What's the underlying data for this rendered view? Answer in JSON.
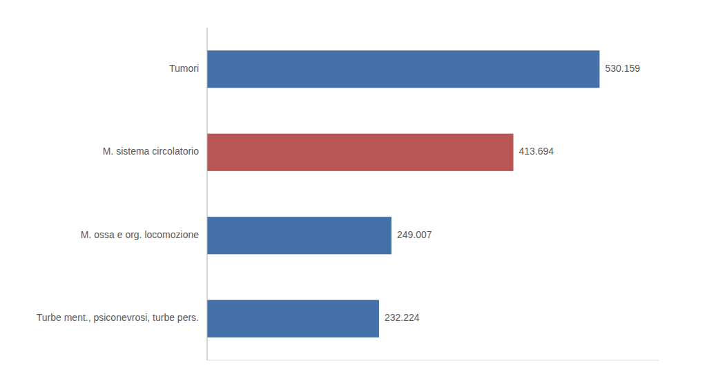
{
  "chart_data": {
    "type": "bar",
    "orientation": "horizontal",
    "categories": [
      "Turbe ment., psiconevrosi, turbe pers.",
      "M. ossa e org. locomozione",
      "M. sistema circolatorio",
      "Tumori"
    ],
    "values": [
      232224,
      249007,
      413694,
      530159
    ],
    "value_labels": [
      "232.224",
      "249.007",
      "413.694",
      "530.159"
    ],
    "colors": [
      "#4472a8",
      "#4472a8",
      "#b85555",
      "#4472a8"
    ],
    "xlim": [
      0,
      610000
    ],
    "data_labels": true,
    "tick_labels": "y",
    "grid": false
  }
}
